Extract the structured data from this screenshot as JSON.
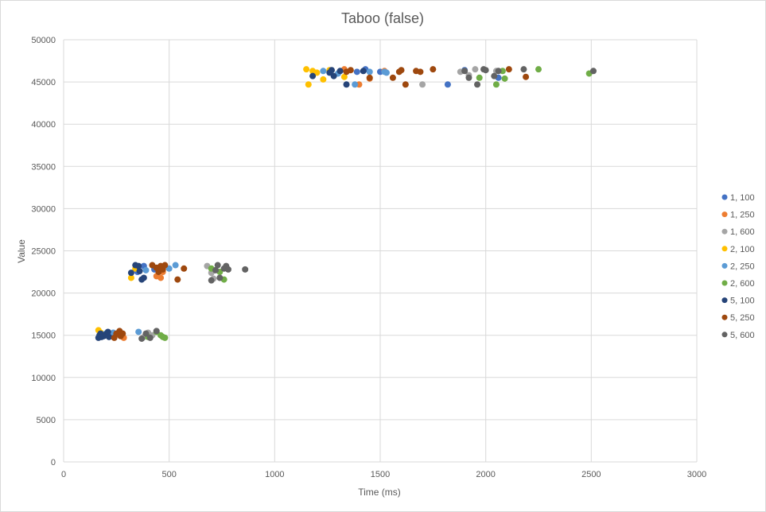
{
  "chart_data": {
    "type": "scatter",
    "title": "Taboo (false)",
    "xlabel": "Time (ms)",
    "ylabel": "Value",
    "xlim": [
      0,
      3000
    ],
    "ylim": [
      0,
      50000
    ],
    "xticks": [
      0,
      500,
      1000,
      1500,
      2000,
      2500,
      3000
    ],
    "yticks": [
      0,
      5000,
      10000,
      15000,
      20000,
      25000,
      30000,
      35000,
      40000,
      45000,
      50000
    ],
    "grid": true,
    "legend_position": "right",
    "series": [
      {
        "name": "1, 100",
        "color": "#4472C4",
        "points": [
          [
            190,
            15000
          ],
          [
            220,
            14900
          ],
          [
            350,
            22500
          ],
          [
            380,
            23200
          ],
          [
            430,
            22800
          ],
          [
            1390,
            46200
          ],
          [
            1430,
            46500
          ],
          [
            1500,
            46200
          ],
          [
            1820,
            44700
          ],
          [
            1900,
            46400
          ],
          [
            2060,
            45500
          ]
        ]
      },
      {
        "name": "1, 250",
        "color": "#ED7D31",
        "points": [
          [
            260,
            15100
          ],
          [
            285,
            14700
          ],
          [
            440,
            22000
          ],
          [
            460,
            21800
          ],
          [
            470,
            22500
          ],
          [
            1330,
            46500
          ],
          [
            1400,
            44700
          ],
          [
            1450,
            45400
          ],
          [
            1520,
            46300
          ]
        ]
      },
      {
        "name": "1, 600",
        "color": "#A5A5A5",
        "points": [
          [
            380,
            14800
          ],
          [
            400,
            15300
          ],
          [
            420,
            15000
          ],
          [
            680,
            23200
          ],
          [
            700,
            22400
          ],
          [
            710,
            21700
          ],
          [
            1700,
            44700
          ],
          [
            1880,
            46200
          ],
          [
            1920,
            45800
          ],
          [
            1950,
            46500
          ],
          [
            2050,
            46300
          ]
        ]
      },
      {
        "name": "2, 100",
        "color": "#FFC000",
        "points": [
          [
            165,
            15600
          ],
          [
            175,
            15300
          ],
          [
            185,
            14900
          ],
          [
            320,
            21800
          ],
          [
            340,
            22900
          ],
          [
            1150,
            46500
          ],
          [
            1160,
            44700
          ],
          [
            1180,
            46300
          ],
          [
            1200,
            46100
          ],
          [
            1230,
            45300
          ],
          [
            1260,
            46400
          ],
          [
            1330,
            45600
          ]
        ]
      },
      {
        "name": "2, 250",
        "color": "#5B9BD5",
        "points": [
          [
            200,
            15200
          ],
          [
            235,
            15300
          ],
          [
            245,
            15100
          ],
          [
            355,
            15400
          ],
          [
            390,
            22700
          ],
          [
            500,
            22900
          ],
          [
            530,
            23300
          ],
          [
            1230,
            46300
          ],
          [
            1300,
            46000
          ],
          [
            1380,
            44700
          ],
          [
            1450,
            46200
          ],
          [
            1520,
            46200
          ],
          [
            1530,
            46100
          ]
        ]
      },
      {
        "name": "2, 600",
        "color": "#70AD47",
        "points": [
          [
            400,
            14800
          ],
          [
            440,
            15400
          ],
          [
            460,
            15000
          ],
          [
            470,
            14800
          ],
          [
            480,
            14700
          ],
          [
            700,
            22900
          ],
          [
            740,
            22500
          ],
          [
            760,
            21600
          ],
          [
            1970,
            45500
          ],
          [
            2050,
            44700
          ],
          [
            2080,
            46300
          ],
          [
            2090,
            45400
          ],
          [
            2250,
            46500
          ],
          [
            2490,
            46000
          ]
        ]
      },
      {
        "name": "5, 100",
        "color": "#264478",
        "points": [
          [
            165,
            14700
          ],
          [
            170,
            15000
          ],
          [
            175,
            15200
          ],
          [
            180,
            14800
          ],
          [
            190,
            14900
          ],
          [
            200,
            15100
          ],
          [
            210,
            15400
          ],
          [
            215,
            14800
          ],
          [
            320,
            22400
          ],
          [
            340,
            23300
          ],
          [
            355,
            23200
          ],
          [
            360,
            22600
          ],
          [
            370,
            21600
          ],
          [
            380,
            21800
          ],
          [
            1180,
            45700
          ],
          [
            1260,
            46100
          ],
          [
            1270,
            46400
          ],
          [
            1280,
            45700
          ],
          [
            1310,
            46300
          ],
          [
            1340,
            44700
          ],
          [
            1420,
            46300
          ]
        ]
      },
      {
        "name": "5, 250",
        "color": "#9E480E",
        "points": [
          [
            240,
            14700
          ],
          [
            250,
            15200
          ],
          [
            265,
            15500
          ],
          [
            270,
            14900
          ],
          [
            280,
            15200
          ],
          [
            420,
            23300
          ],
          [
            440,
            23000
          ],
          [
            450,
            22500
          ],
          [
            460,
            23200
          ],
          [
            470,
            22800
          ],
          [
            480,
            23300
          ],
          [
            540,
            21600
          ],
          [
            570,
            22900
          ],
          [
            1340,
            46200
          ],
          [
            1360,
            46400
          ],
          [
            1450,
            45500
          ],
          [
            1560,
            45500
          ],
          [
            1590,
            46200
          ],
          [
            1600,
            46400
          ],
          [
            1620,
            44700
          ],
          [
            1670,
            46300
          ],
          [
            1690,
            46200
          ],
          [
            1750,
            46500
          ],
          [
            2110,
            46500
          ],
          [
            2190,
            45600
          ]
        ]
      },
      {
        "name": "5, 600",
        "color": "#636363",
        "points": [
          [
            370,
            14600
          ],
          [
            390,
            15200
          ],
          [
            410,
            14700
          ],
          [
            440,
            15500
          ],
          [
            700,
            21500
          ],
          [
            720,
            22700
          ],
          [
            730,
            23300
          ],
          [
            740,
            21800
          ],
          [
            760,
            22900
          ],
          [
            770,
            23200
          ],
          [
            780,
            22800
          ],
          [
            860,
            22800
          ],
          [
            1900,
            46300
          ],
          [
            1920,
            45500
          ],
          [
            1960,
            44700
          ],
          [
            1990,
            46500
          ],
          [
            2000,
            46400
          ],
          [
            2040,
            45700
          ],
          [
            2060,
            46300
          ],
          [
            2180,
            46500
          ],
          [
            2510,
            46300
          ]
        ]
      }
    ]
  }
}
